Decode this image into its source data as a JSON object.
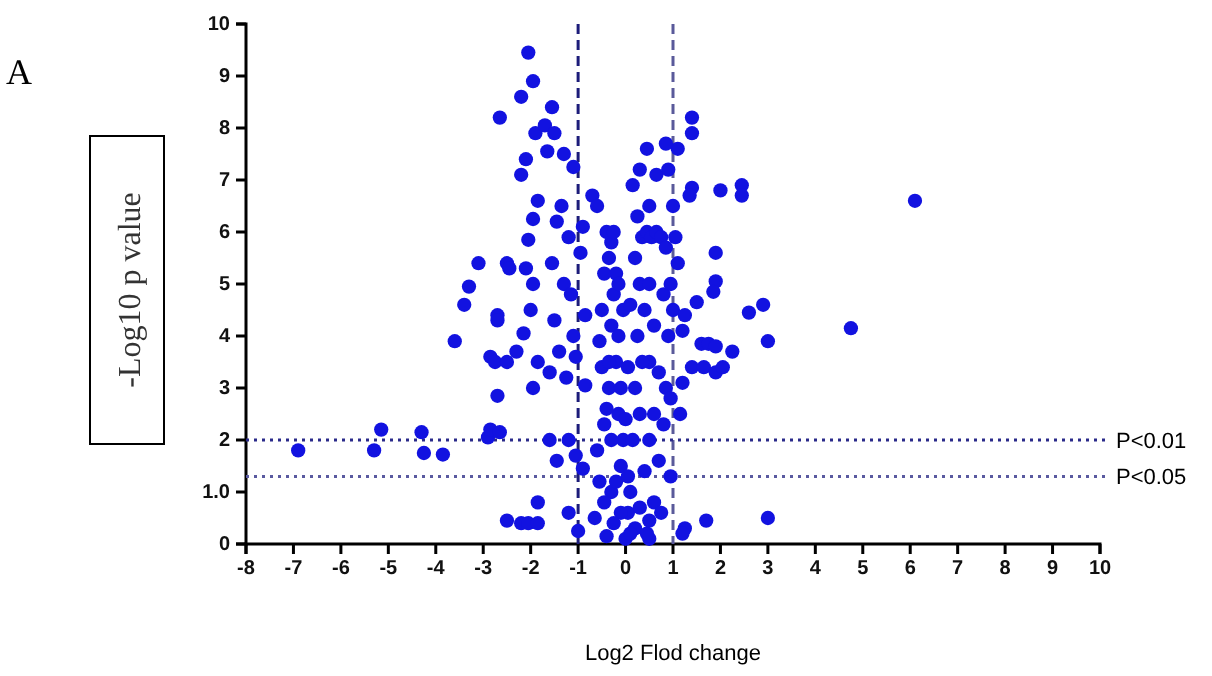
{
  "chart_data": {
    "type": "scatter",
    "xlabel": "Log2 Flod change",
    "ylabel": "-Log10 p value",
    "annotations": [
      "A"
    ],
    "xlim": [
      -8,
      10
    ],
    "xticks": [
      -8,
      -7,
      -6,
      -5,
      -4,
      -3,
      -2,
      -1,
      0,
      1,
      2,
      3,
      4,
      5,
      6,
      7,
      8,
      9,
      10
    ],
    "ylim": [
      0,
      10
    ],
    "yticks": [
      0,
      {
        "value": 1,
        "label": "1.0"
      },
      2,
      3,
      4,
      5,
      6,
      7,
      8,
      9,
      10
    ],
    "grid": false,
    "marker": "circle",
    "ref_lines": [
      {
        "axis": "x",
        "value": -1,
        "label": null,
        "color": "#1c1c7a",
        "line_style": "dashed"
      },
      {
        "axis": "x",
        "value": 1,
        "label": null,
        "color": "#5a5a9a",
        "line_style": "dashed"
      },
      {
        "axis": "y",
        "value": 2,
        "label": "P<0.01",
        "color": "#2a2a8a",
        "line_style": "dotted"
      },
      {
        "axis": "y",
        "value": 1.3,
        "label": "P<0.05",
        "color": "#5a5aa0",
        "line_style": "dotted"
      }
    ],
    "series": [
      {
        "color": "#1212e0",
        "x": [
          -6.9,
          -5.3,
          -5.15,
          -4.3,
          -4.25,
          -3.85,
          -3.6,
          -3.4,
          -3.3,
          -3.1,
          -2.9,
          -2.85,
          -2.7,
          -2.7,
          -2.65,
          -2.7,
          -2.65,
          -2.5,
          -2.45,
          -2.5,
          -2.2,
          -2.05,
          -1.85,
          -2.85,
          -2.75,
          -2.5,
          -2.2,
          -2.05,
          -1.95,
          -2.2,
          -2.1,
          -1.9,
          -1.7,
          -1.55,
          -1.5,
          -1.3,
          -1.1,
          -1.65,
          -1.85,
          -1.95,
          -2.05,
          -2.1,
          -1.95,
          -2,
          -2.15,
          -2.3,
          -1.85,
          -1.95,
          -1.6,
          -1.4,
          -1.5,
          -1.3,
          -1.55,
          -1.45,
          -1.35,
          -1.2,
          -1.15,
          -1.1,
          -1.25,
          -1.05,
          -0.95,
          -0.9,
          -0.85,
          -0.7,
          -0.6,
          -0.55,
          -0.85,
          -1.2,
          -1.6,
          -1.45,
          -1.85,
          -1.05,
          -0.9,
          -1.2,
          -1,
          -0.65,
          -0.4,
          -0.3,
          -0.25,
          -0.2,
          -0.15,
          -0.1,
          0,
          0.05,
          -0.3,
          -0.45,
          -0.35,
          -0.5,
          -0.45,
          -0.4,
          -0.35,
          -0.3,
          -0.25,
          -0.2,
          -0.15,
          -0.1,
          -0.05,
          -0.5,
          -0.4,
          -0.3,
          -0.2,
          -0.1,
          -0.6,
          -0.55,
          -0.45,
          -0.25,
          -0.35,
          -0.15,
          -0.05,
          0.1,
          0.15,
          0.2,
          0.25,
          0.3,
          0.35,
          0.45,
          0.55,
          0.65,
          0.75,
          0.85,
          0.2,
          0.4,
          0.5,
          0.6,
          0.7,
          0.5,
          0.6,
          0.7,
          0.8,
          0.9,
          0.85,
          0.95,
          0.3,
          0.4,
          0.5,
          0.3,
          0.2,
          0.1,
          0.35,
          0.25,
          0.5,
          0.65,
          0.9,
          0.3,
          1,
          1.05,
          1.1,
          1,
          0.95,
          0.6,
          0.75,
          0.5,
          0.15,
          0.1,
          0.05,
          0,
          0.05,
          6.1,
          4.75,
          3,
          1.7,
          1.25,
          1.2,
          3,
          2.9,
          2.6,
          2.45,
          2.45,
          2,
          1.4,
          1.4,
          1.1,
          0.85,
          0.45,
          1.4,
          1.35,
          1.9,
          1.9,
          1.85,
          1.5,
          1.25,
          1.2,
          1.6,
          1.75,
          1.9,
          2.25,
          1.4,
          1.65,
          1.9,
          2.05,
          1.2,
          1.15,
          0.8,
          0.95,
          0.45,
          0.5
        ],
        "values": [
          1.8,
          1.8,
          2.2,
          2.15,
          1.75,
          1.72,
          3.9,
          4.6,
          4.95,
          5.4,
          2.05,
          2.2,
          4.4,
          4.3,
          2.15,
          2.85,
          8.2,
          5.4,
          5.3,
          0.45,
          0.4,
          0.4,
          0.4,
          3.6,
          3.5,
          3.5,
          8.6,
          9.45,
          8.9,
          7.1,
          7.4,
          7.9,
          8.05,
          8.4,
          7.9,
          7.5,
          7.25,
          7.55,
          6.6,
          6.25,
          5.85,
          5.3,
          5,
          4.5,
          4.05,
          3.7,
          3.5,
          3,
          3.3,
          3.7,
          4.3,
          5,
          5.4,
          6.2,
          6.5,
          5.9,
          4.8,
          4,
          3.2,
          3.6,
          5.6,
          6.1,
          4.4,
          6.7,
          6.5,
          3.9,
          3.05,
          2,
          2,
          1.6,
          0.8,
          1.7,
          1.45,
          0.6,
          0.25,
          0.5,
          0.15,
          5.8,
          4.8,
          3.5,
          2.5,
          1.5,
          0.1,
          0.6,
          1,
          2.3,
          3,
          4.5,
          5.2,
          6,
          5.5,
          4.2,
          6,
          5.2,
          4,
          3,
          2,
          3.4,
          2.6,
          2,
          1.2,
          0.6,
          1.8,
          1.2,
          0.8,
          0.4,
          3.5,
          5,
          4.5,
          1,
          2,
          3,
          4,
          5,
          5.9,
          6,
          5.9,
          6,
          5.9,
          5.7,
          5.5,
          4.5,
          3.5,
          2.5,
          1.6,
          5,
          4.2,
          3.3,
          4.8,
          4,
          3,
          5,
          0.7,
          1.4,
          2,
          2.5,
          0.3,
          0.2,
          3.5,
          6.3,
          6.5,
          7.1,
          7.2,
          7.2,
          6.5,
          5.9,
          5.4,
          4.5,
          2.8,
          0.8,
          0.6,
          0.1,
          6.9,
          4.6,
          3.4,
          2.4,
          1.3,
          6.6,
          4.15,
          0.5,
          0.45,
          0.3,
          0.2,
          3.9,
          4.6,
          4.45,
          6.9,
          6.7,
          6.8,
          8.2,
          7.9,
          7.6,
          7.7,
          7.6,
          6.85,
          6.7,
          5.6,
          5.05,
          4.85,
          4.65,
          4.4,
          4.1,
          3.85,
          3.85,
          3.8,
          3.7,
          3.4,
          3.4,
          3.3,
          3.4,
          3.1,
          2.5,
          2.3,
          1.3,
          0.2,
          0.45
        ]
      }
    ]
  }
}
